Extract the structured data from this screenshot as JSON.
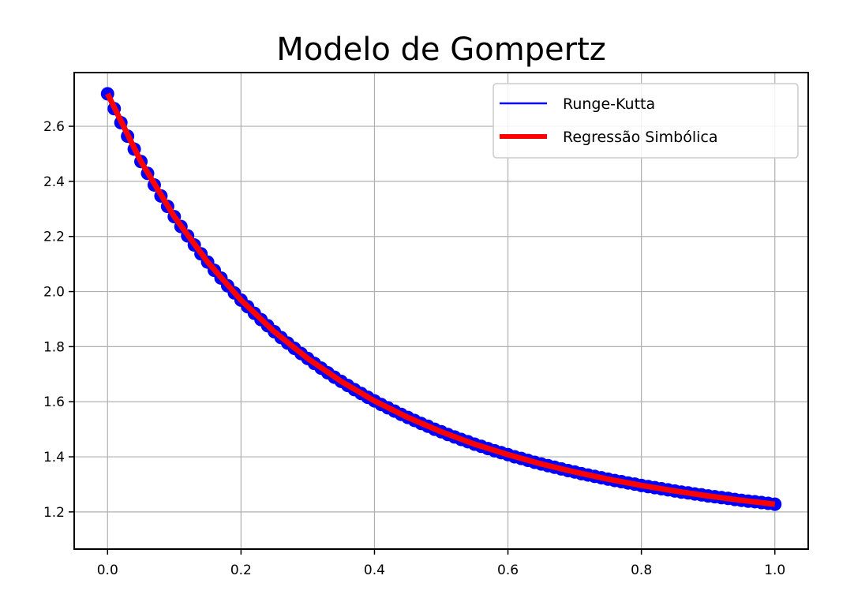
{
  "chart_data": {
    "type": "line",
    "title": "Modelo de Gompertz",
    "xlabel": "",
    "ylabel": "",
    "xlim": [
      -0.05,
      1.05
    ],
    "ylim": [
      1.065,
      2.795
    ],
    "xticks": [
      0.0,
      0.2,
      0.4,
      0.6,
      0.8,
      1.0
    ],
    "xtick_labels": [
      "0.0",
      "0.2",
      "0.4",
      "0.6",
      "0.8",
      "1.0"
    ],
    "yticks": [
      1.2,
      1.4,
      1.6,
      1.8,
      2.0,
      2.2,
      2.4,
      2.6
    ],
    "ytick_labels": [
      "1.2",
      "1.4",
      "1.6",
      "1.8",
      "2.0",
      "2.2",
      "2.4",
      "2.6"
    ],
    "grid": true,
    "legend_position": "upper right",
    "series": [
      {
        "name": "Runge-Kutta",
        "color": "#0000ff",
        "style": "line with circle markers",
        "x": [
          0.0,
          0.01,
          0.02,
          0.03,
          0.04,
          0.05,
          0.06,
          0.07,
          0.08,
          0.09,
          0.1,
          0.11,
          0.12,
          0.13,
          0.14,
          0.15,
          0.16,
          0.17,
          0.18,
          0.19,
          0.2,
          0.21,
          0.22,
          0.23,
          0.24,
          0.25,
          0.26,
          0.27,
          0.28,
          0.29,
          0.3,
          0.31,
          0.32,
          0.33,
          0.34,
          0.35,
          0.36,
          0.37,
          0.38,
          0.39,
          0.4,
          0.41,
          0.42,
          0.43,
          0.44,
          0.45,
          0.46,
          0.47,
          0.48,
          0.49,
          0.5,
          0.51,
          0.52,
          0.53,
          0.54,
          0.55,
          0.56,
          0.57,
          0.58,
          0.59,
          0.6,
          0.61,
          0.62,
          0.63,
          0.64,
          0.65,
          0.66,
          0.67,
          0.68,
          0.69,
          0.7,
          0.71,
          0.72,
          0.73,
          0.74,
          0.75,
          0.76,
          0.77,
          0.78,
          0.79,
          0.8,
          0.81,
          0.82,
          0.83,
          0.84,
          0.85,
          0.86,
          0.87,
          0.88,
          0.89,
          0.9,
          0.91,
          0.92,
          0.93,
          0.94,
          0.95,
          0.96,
          0.97,
          0.98,
          0.99,
          1.0
        ],
        "y": [
          2.718,
          2.664,
          2.613,
          2.564,
          2.517,
          2.472,
          2.429,
          2.387,
          2.347,
          2.309,
          2.272,
          2.236,
          2.202,
          2.169,
          2.137,
          2.107,
          2.077,
          2.049,
          2.021,
          1.995,
          1.969,
          1.945,
          1.921,
          1.898,
          1.876,
          1.854,
          1.833,
          1.813,
          1.794,
          1.775,
          1.757,
          1.739,
          1.722,
          1.705,
          1.689,
          1.674,
          1.659,
          1.644,
          1.63,
          1.616,
          1.603,
          1.59,
          1.578,
          1.566,
          1.554,
          1.543,
          1.532,
          1.521,
          1.511,
          1.5,
          1.491,
          1.481,
          1.472,
          1.463,
          1.455,
          1.446,
          1.438,
          1.43,
          1.422,
          1.415,
          1.408,
          1.4,
          1.394,
          1.387,
          1.38,
          1.374,
          1.368,
          1.362,
          1.356,
          1.35,
          1.345,
          1.339,
          1.334,
          1.329,
          1.324,
          1.319,
          1.314,
          1.31,
          1.305,
          1.301,
          1.296,
          1.292,
          1.288,
          1.284,
          1.28,
          1.276,
          1.272,
          1.269,
          1.265,
          1.262,
          1.258,
          1.255,
          1.252,
          1.249,
          1.245,
          1.242,
          1.239,
          1.237,
          1.234,
          1.231,
          1.228
        ]
      },
      {
        "name": "Regressão Simbólica",
        "color": "#ff0000",
        "style": "thick line",
        "x": [
          0.0,
          0.05,
          0.1,
          0.15,
          0.2,
          0.25,
          0.3,
          0.35,
          0.4,
          0.45,
          0.5,
          0.55,
          0.6,
          0.65,
          0.7,
          0.75,
          0.8,
          0.85,
          0.9,
          0.95,
          1.0
        ],
        "y": [
          2.718,
          2.472,
          2.272,
          2.107,
          1.969,
          1.854,
          1.757,
          1.674,
          1.603,
          1.543,
          1.491,
          1.446,
          1.408,
          1.374,
          1.345,
          1.319,
          1.296,
          1.276,
          1.258,
          1.242,
          1.228
        ]
      }
    ]
  }
}
